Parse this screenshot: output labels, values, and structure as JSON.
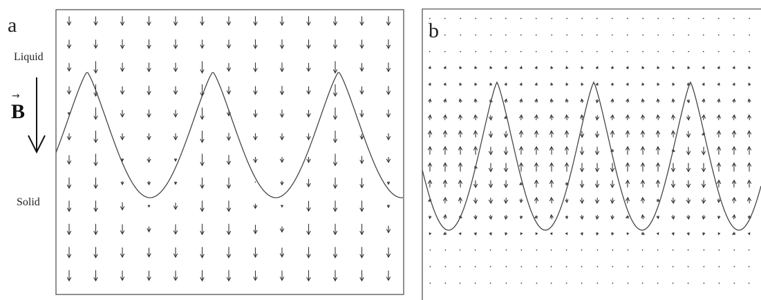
{
  "panel_a": {
    "label": "a",
    "liquid_label": "Liquid",
    "solid_label": "Solid",
    "field_symbol": "B",
    "field_vector_mark": "→",
    "interface_periods": 3,
    "flow_direction": "down"
  },
  "panel_b": {
    "label": "b",
    "interface_periods": 3,
    "flow_pattern": "upward outside fingers, downward inside fingers"
  },
  "colors": {
    "frame": "#555555",
    "curve": "#444444",
    "arrow": "#333333",
    "background": "#ffffff"
  }
}
